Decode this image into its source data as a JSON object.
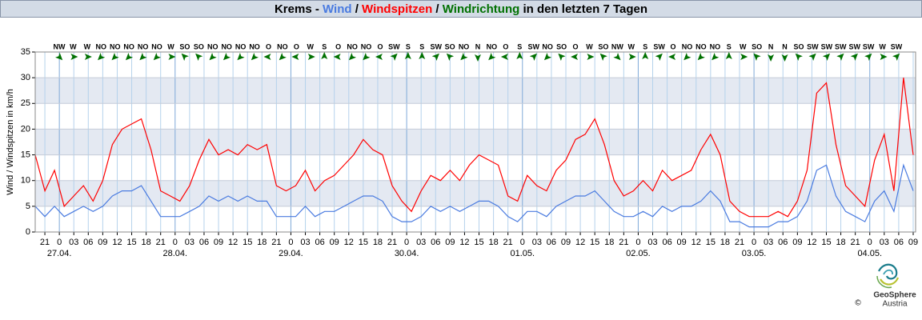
{
  "chart_data": {
    "type": "line",
    "title": [
      {
        "text": "Krems - ",
        "color": "#000000"
      },
      {
        "text": "Wind",
        "color": "#4a7be0"
      },
      {
        "text": " / ",
        "color": "#000000"
      },
      {
        "text": "Windspitzen",
        "color": "#ff0000"
      },
      {
        "text": " / ",
        "color": "#000000"
      },
      {
        "text": "Windrichtung",
        "color": "#007000"
      },
      {
        "text": " in den letzten 7 Tagen",
        "color": "#000000"
      }
    ],
    "y_label": "Wind / Windspitzen in km/h",
    "ylim": [
      0,
      35
    ],
    "yticks": [
      0,
      5,
      10,
      15,
      20,
      25,
      30,
      35
    ],
    "bands": [
      [
        5,
        10
      ],
      [
        15,
        20
      ],
      [
        25,
        30
      ]
    ],
    "xlim": [
      -5,
      177.5
    ],
    "xticks": [
      {
        "value": -3,
        "label": "21"
      },
      0,
      {
        "value": 3,
        "label": "03"
      },
      {
        "value": 6,
        "label": "06"
      },
      {
        "value": 9,
        "label": "09"
      },
      12,
      15,
      18,
      21,
      {
        "value": 24,
        "label": "0"
      },
      {
        "value": 27,
        "label": "03"
      },
      {
        "value": 30,
        "label": "06"
      },
      {
        "value": 33,
        "label": "09"
      },
      {
        "value": 36,
        "label": "12"
      },
      {
        "value": 39,
        "label": "15"
      },
      {
        "value": 42,
        "label": "18"
      },
      {
        "value": 45,
        "label": "21"
      },
      {
        "value": 48,
        "label": "0"
      },
      {
        "value": 51,
        "label": "03"
      },
      {
        "value": 54,
        "label": "06"
      },
      {
        "value": 57,
        "label": "09"
      },
      {
        "value": 60,
        "label": "12"
      },
      {
        "value": 63,
        "label": "15"
      },
      {
        "value": 66,
        "label": "18"
      },
      {
        "value": 69,
        "label": "21"
      },
      {
        "value": 72,
        "label": "0"
      },
      {
        "value": 75,
        "label": "03"
      },
      {
        "value": 78,
        "label": "06"
      },
      {
        "value": 81,
        "label": "09"
      },
      {
        "value": 84,
        "label": "12"
      },
      {
        "value": 87,
        "label": "15"
      },
      {
        "value": 90,
        "label": "18"
      },
      {
        "value": 93,
        "label": "21"
      },
      {
        "value": 96,
        "label": "0"
      },
      {
        "value": 99,
        "label": "03"
      },
      {
        "value": 102,
        "label": "06"
      },
      {
        "value": 105,
        "label": "09"
      },
      {
        "value": 108,
        "label": "12"
      },
      {
        "value": 111,
        "label": "15"
      },
      {
        "value": 114,
        "label": "18"
      },
      {
        "value": 117,
        "label": "21"
      },
      {
        "value": 120,
        "label": "0"
      },
      {
        "value": 123,
        "label": "03"
      },
      {
        "value": 126,
        "label": "06"
      },
      {
        "value": 129,
        "label": "09"
      },
      {
        "value": 132,
        "label": "12"
      },
      {
        "value": 135,
        "label": "15"
      },
      {
        "value": 138,
        "label": "18"
      },
      {
        "value": 141,
        "label": "21"
      },
      {
        "value": 144,
        "label": "0"
      },
      {
        "value": 147,
        "label": "03"
      },
      {
        "value": 150,
        "label": "06"
      },
      {
        "value": 153,
        "label": "09"
      },
      {
        "value": 156,
        "label": "12"
      },
      {
        "value": 159,
        "label": "15"
      },
      {
        "value": 162,
        "label": "18"
      },
      {
        "value": 165,
        "label": "21"
      },
      {
        "value": 168,
        "label": "0"
      },
      {
        "value": 171,
        "label": "03"
      },
      {
        "value": 174,
        "label": "06"
      },
      {
        "value": 177,
        "label": "09"
      }
    ],
    "date_labels": [
      {
        "value": 0,
        "label": "27.04."
      },
      {
        "value": 24,
        "label": "28.04."
      },
      {
        "value": 48,
        "label": "29.04."
      },
      {
        "value": 72,
        "label": "30.04."
      },
      {
        "value": 96,
        "label": "01.05."
      },
      {
        "value": 120,
        "label": "02.05."
      },
      {
        "value": 144,
        "label": "03.05."
      },
      {
        "value": 168,
        "label": "04.05."
      }
    ],
    "x": [
      -5,
      -3,
      -1,
      1,
      3,
      5,
      7,
      9,
      11,
      13,
      15,
      17,
      19,
      21,
      23,
      25,
      27,
      29,
      31,
      33,
      35,
      37,
      39,
      41,
      43,
      45,
      47,
      49,
      51,
      53,
      55,
      57,
      59,
      61,
      63,
      65,
      67,
      69,
      71,
      73,
      75,
      77,
      79,
      81,
      83,
      85,
      87,
      89,
      91,
      93,
      95,
      97,
      99,
      101,
      103,
      105,
      107,
      109,
      111,
      113,
      115,
      117,
      119,
      121,
      123,
      125,
      127,
      129,
      131,
      133,
      135,
      137,
      139,
      141,
      143,
      145,
      147,
      149,
      151,
      153,
      155,
      157,
      159,
      161,
      163,
      165,
      167,
      169,
      171,
      173,
      175,
      177
    ],
    "series": [
      {
        "name": "Wind",
        "color": "#4a7be0",
        "values": [
          5,
          3,
          5,
          3,
          4,
          5,
          4,
          5,
          7,
          8,
          8,
          9,
          6,
          3,
          3,
          3,
          4,
          5,
          7,
          6,
          7,
          6,
          7,
          6,
          6,
          3,
          3,
          3,
          5,
          3,
          4,
          4,
          5,
          6,
          7,
          7,
          6,
          3,
          2,
          2,
          3,
          5,
          4,
          5,
          4,
          5,
          6,
          6,
          5,
          3,
          2,
          4,
          4,
          3,
          5,
          6,
          7,
          7,
          8,
          6,
          4,
          3,
          3,
          4,
          3,
          5,
          4,
          5,
          5,
          6,
          8,
          6,
          2,
          2,
          1,
          1,
          1,
          2,
          2,
          3,
          6,
          12,
          13,
          7,
          4,
          3,
          2,
          6,
          8,
          4,
          13,
          8
        ]
      },
      {
        "name": "Windspitzen",
        "color": "#ff0000",
        "values": [
          15,
          8,
          12,
          5,
          7,
          9,
          6,
          10,
          17,
          20,
          21,
          22,
          16,
          8,
          7,
          6,
          9,
          14,
          18,
          15,
          16,
          15,
          17,
          16,
          17,
          9,
          8,
          9,
          12,
          8,
          10,
          11,
          13,
          15,
          18,
          16,
          15,
          9,
          6,
          4,
          8,
          11,
          10,
          12,
          10,
          13,
          15,
          14,
          13,
          7,
          6,
          11,
          9,
          8,
          12,
          14,
          18,
          19,
          22,
          17,
          10,
          7,
          8,
          10,
          8,
          12,
          10,
          11,
          12,
          16,
          19,
          15,
          6,
          4,
          3,
          3,
          3,
          4,
          3,
          6,
          12,
          27,
          29,
          17,
          9,
          7,
          5,
          14,
          19,
          8,
          30,
          15
        ]
      }
    ],
    "wind_direction": {
      "color": "#007000",
      "labels": [
        "NW",
        "W",
        "W",
        "NO",
        "NO",
        "NO",
        "NO",
        "NO",
        "W",
        "SO",
        "SO",
        "NO",
        "NO",
        "NO",
        "NO",
        "O",
        "NO",
        "O",
        "W",
        "S",
        "O",
        "NO",
        "NO",
        "O",
        "SW",
        "S",
        "S",
        "SW",
        "SO",
        "NO",
        "N",
        "NO",
        "O",
        "S",
        "SW",
        "NO",
        "SO",
        "O",
        "W",
        "SO",
        "NW",
        "W",
        "S",
        "SW",
        "O",
        "NO",
        "NO",
        "NO",
        "S",
        "W",
        "SO",
        "N",
        "N",
        "SO",
        "SW",
        "SW",
        "SW",
        "SW",
        "SW",
        "W",
        "SW"
      ]
    },
    "logo": {
      "name": "GeoSphere",
      "sub": "Austria",
      "copyright": "©"
    }
  }
}
